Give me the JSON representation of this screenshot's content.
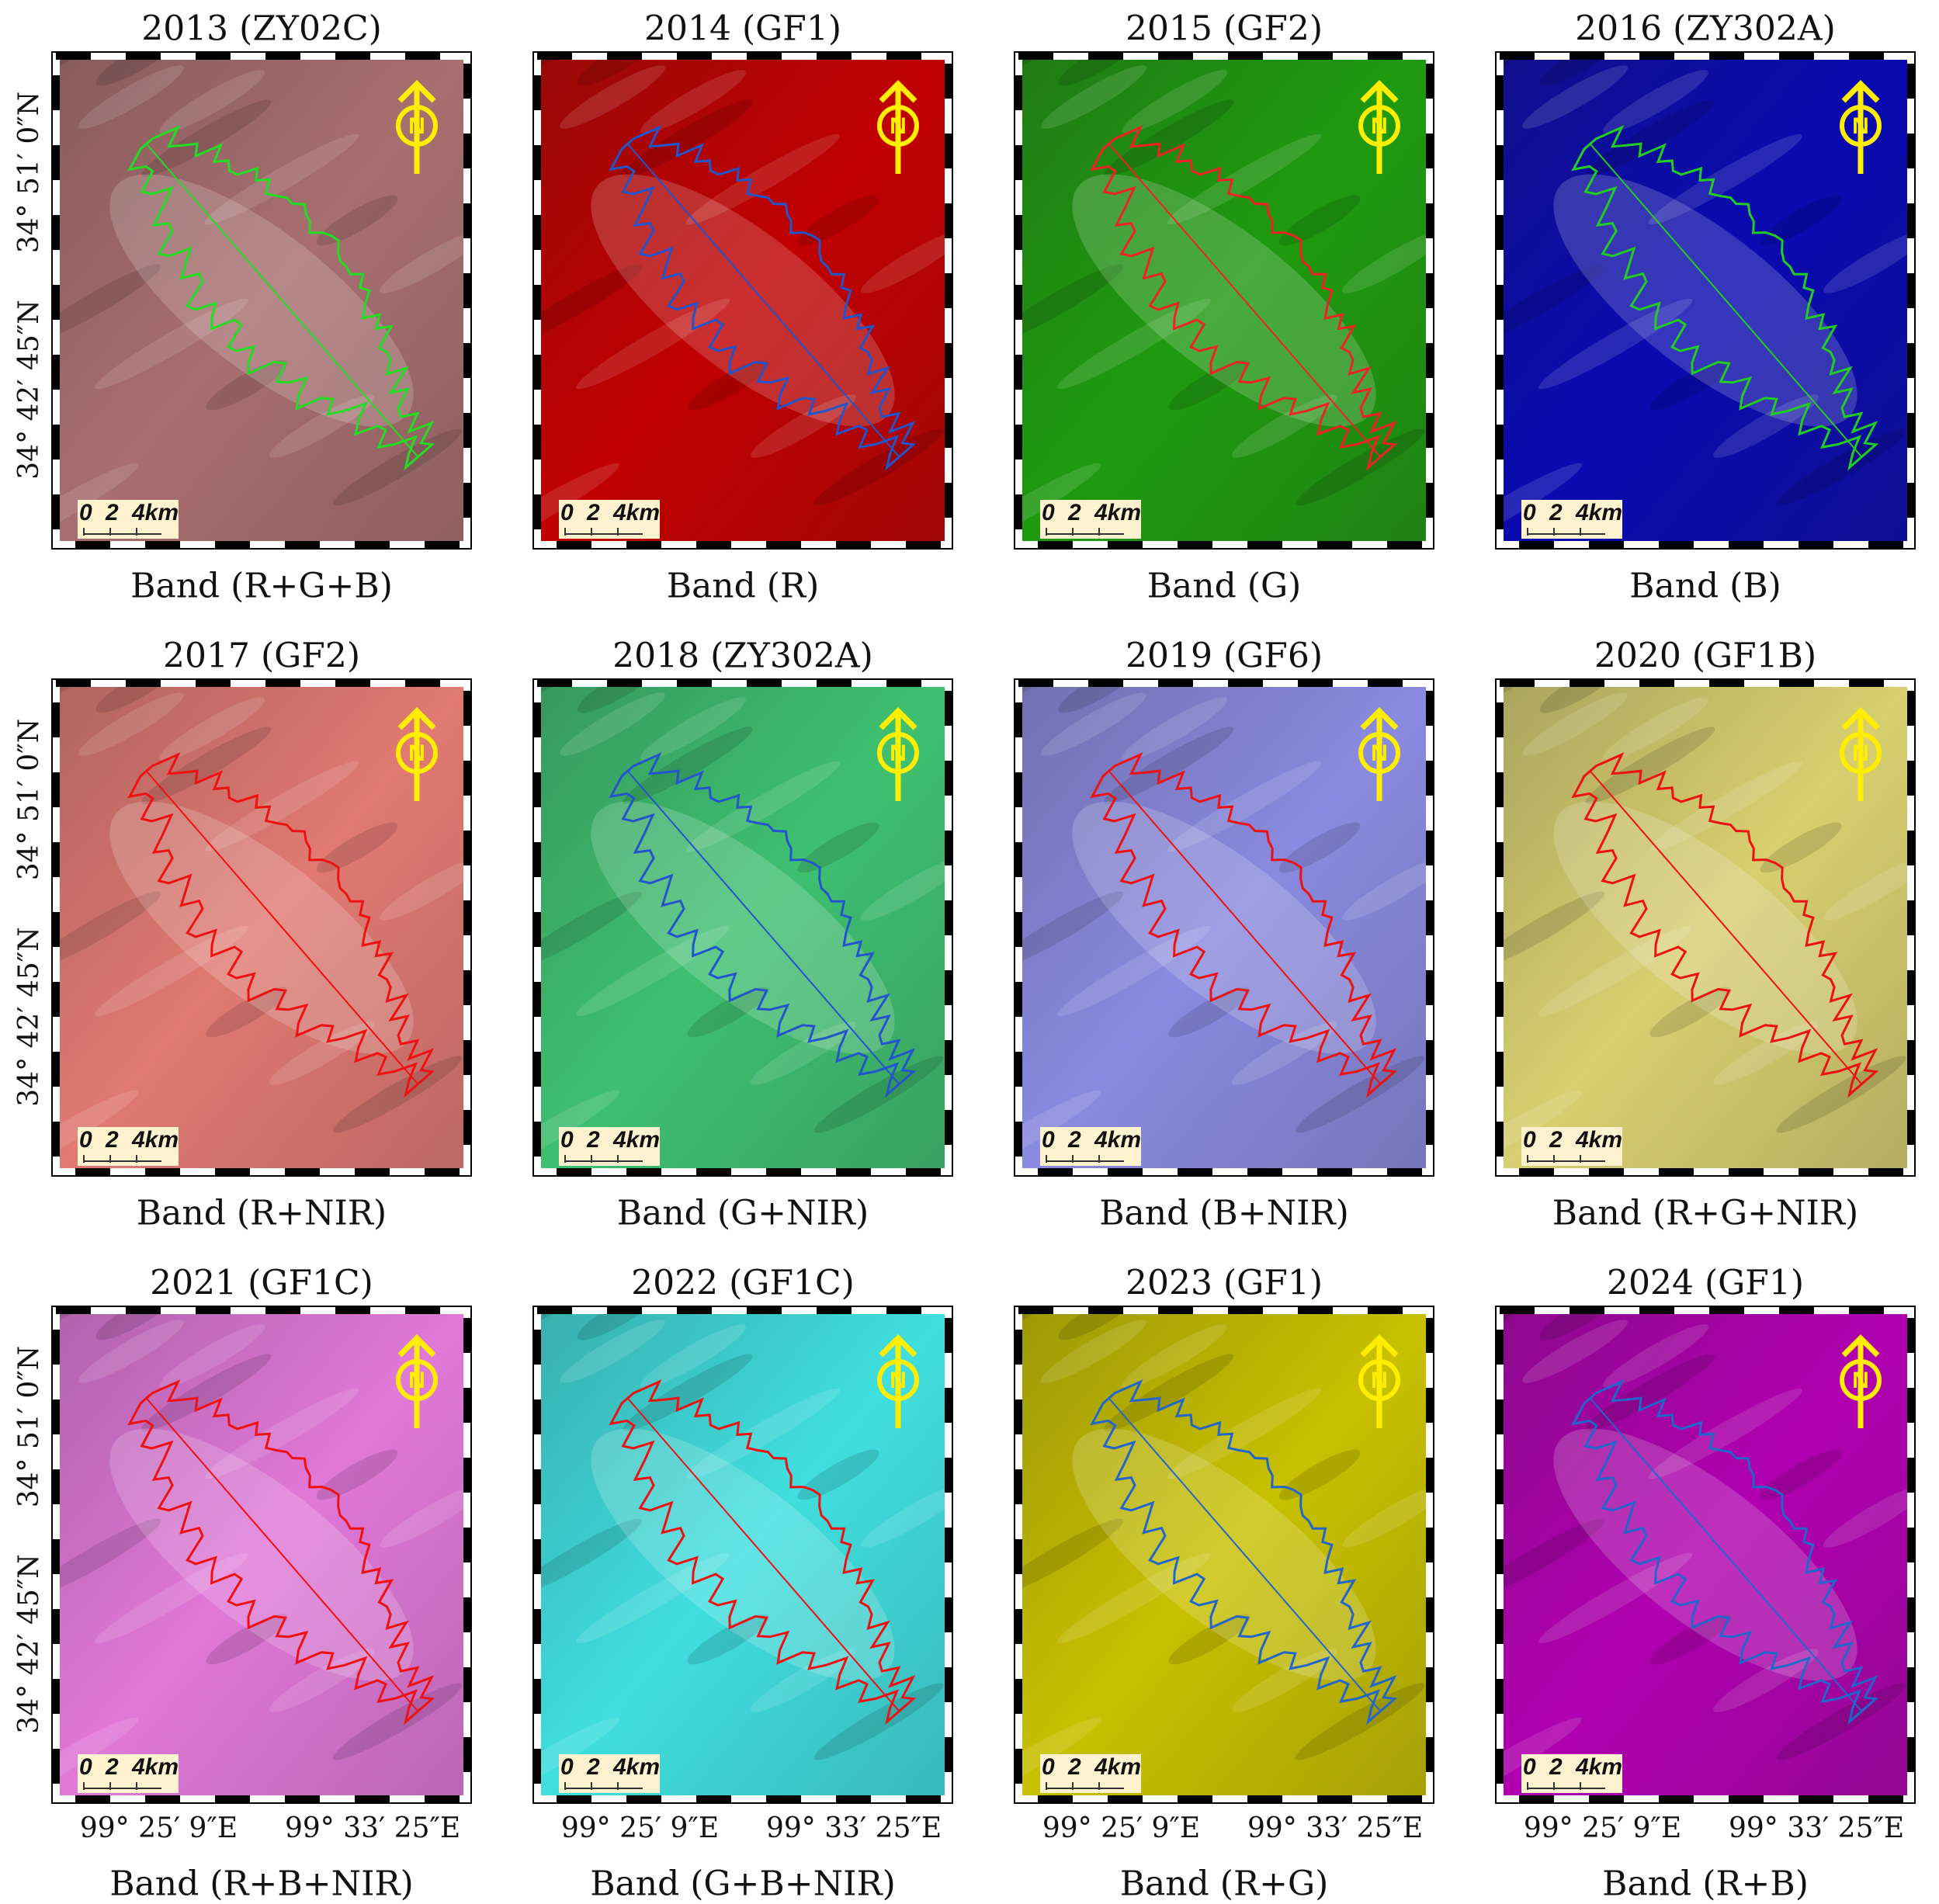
{
  "figure": {
    "panels": [
      {
        "title": "2013 (ZY02C)",
        "band": "Band (R+G+B)",
        "image_color": "#a86e70",
        "outline_color": "#22dd22"
      },
      {
        "title": "2014 (GF1)",
        "band": "Band (R)",
        "image_color": "#c00000",
        "outline_color": "#2255cc"
      },
      {
        "title": "2015 (GF2)",
        "band": "Band (G)",
        "image_color": "#1f9a10",
        "outline_color": "#ee2222"
      },
      {
        "title": "2016 (ZY302A)",
        "band": "Band (B)",
        "image_color": "#0a0ab0",
        "outline_color": "#22cc22"
      },
      {
        "title": "2017 (GF2)",
        "band": "Band (R+NIR)",
        "image_color": "#e07a72",
        "outline_color": "#ee1111"
      },
      {
        "title": "2018 (ZY302A)",
        "band": "Band (G+NIR)",
        "image_color": "#3ec070",
        "outline_color": "#2255cc"
      },
      {
        "title": "2019 (GF6)",
        "band": "Band (B+NIR)",
        "image_color": "#8a8ae0",
        "outline_color": "#ee1111"
      },
      {
        "title": "2020 (GF1B)",
        "band": "Band (R+G+NIR)",
        "image_color": "#d8cf70",
        "outline_color": "#ee1111"
      },
      {
        "title": "2021 (GF1C)",
        "band": "Band (R+B+NIR)",
        "image_color": "#e078d8",
        "outline_color": "#ee1111"
      },
      {
        "title": "2022 (GF1C)",
        "band": "Band (G+B+NIR)",
        "image_color": "#40dede",
        "outline_color": "#ee1111"
      },
      {
        "title": "2023 (GF1)",
        "band": "Band (R+G)",
        "image_color": "#c8c000",
        "outline_color": "#2266cc"
      },
      {
        "title": "2024 (GF1)",
        "band": "Band (R+B)",
        "image_color": "#b000b0",
        "outline_color": "#2266cc"
      }
    ],
    "lat_labels": [
      "34° 51′ 0″N",
      "34° 42′ 45″N"
    ],
    "lon_labels": [
      "99° 25′ 9″E",
      "99° 33′ 25″E"
    ],
    "scale_labels": [
      "0",
      "2",
      "4km"
    ],
    "north_label": "N"
  }
}
